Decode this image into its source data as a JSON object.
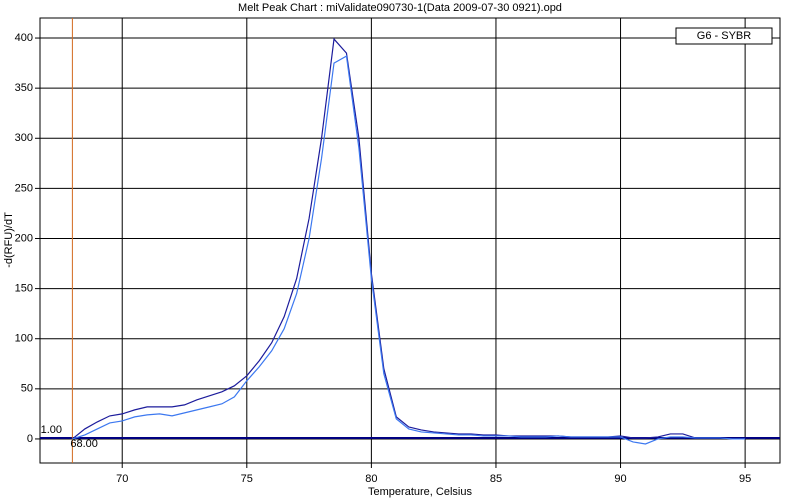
{
  "chart_data": {
    "type": "line",
    "title": "Melt Peak Chart : miValidate090730-1(Data 2009-07-30 0921).opd",
    "x_label": "Temperature, Celsius",
    "y_label": "-d(RFU)/dT",
    "legend_label": "G6 - SYBR",
    "legend_position": "upper right",
    "grid": true,
    "xlim": [
      66.7,
      96.4
    ],
    "ylim": [
      -24,
      420
    ],
    "xticks": [
      70,
      75,
      80,
      85,
      90,
      95
    ],
    "yticks": [
      0,
      50,
      100,
      150,
      200,
      250,
      300,
      350,
      400
    ],
    "threshold": {
      "value": 1,
      "label": "1.00",
      "color": "#000080"
    },
    "marker_x": {
      "value": 68,
      "label": "68.00",
      "color": "#d2691e"
    },
    "x": [
      68,
      68.5,
      69,
      69.5,
      70,
      70.5,
      71,
      71.5,
      72,
      72.5,
      73,
      73.5,
      74,
      74.5,
      75,
      75.5,
      76,
      76.5,
      77,
      77.5,
      78,
      78.5,
      79,
      79.5,
      80,
      80.5,
      81,
      81.5,
      82,
      82.5,
      83,
      83.5,
      84,
      84.5,
      85,
      85.5,
      86,
      86.5,
      87,
      87.5,
      88,
      88.5,
      89,
      89.5,
      90,
      90.5,
      91,
      91.5,
      92,
      92.5,
      93,
      93.5,
      94,
      94.5,
      95
    ],
    "series": [
      {
        "color": "#1c1c9c",
        "values": [
          0,
          10,
          17,
          23,
          25,
          29,
          32,
          32,
          32,
          34,
          39,
          43,
          47,
          53,
          63,
          78,
          96,
          122,
          160,
          220,
          300,
          399,
          385,
          300,
          165,
          70,
          22,
          12,
          9,
          7,
          6,
          5,
          5,
          4,
          4,
          3,
          3,
          3,
          3,
          3,
          2,
          2,
          2,
          2,
          3,
          1,
          1,
          2,
          5,
          5,
          1,
          1,
          1,
          0,
          0
        ]
      },
      {
        "color": "#3c78f0",
        "values": [
          0,
          4,
          10,
          16,
          18,
          22,
          24,
          25,
          23,
          26,
          29,
          32,
          35,
          42,
          58,
          72,
          88,
          110,
          145,
          200,
          280,
          375,
          382,
          290,
          160,
          65,
          20,
          10,
          7,
          6,
          5,
          4,
          4,
          3,
          3,
          3,
          2,
          2,
          2,
          3,
          2,
          2,
          2,
          2,
          2,
          -3,
          -5,
          0,
          2,
          2,
          1,
          1,
          1,
          0,
          0
        ]
      }
    ]
  }
}
